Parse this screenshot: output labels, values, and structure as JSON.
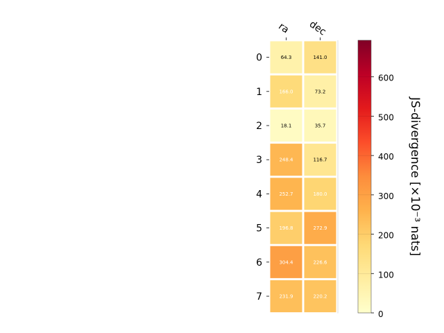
{
  "chart_data": {
    "type": "heatmap",
    "columns": [
      "ra",
      "dec"
    ],
    "rows": [
      "0",
      "1",
      "2",
      "3",
      "4",
      "5",
      "6",
      "7"
    ],
    "values": [
      [
        64.3,
        141.0
      ],
      [
        166.0,
        73.2
      ],
      [
        18.1,
        35.7
      ],
      [
        248.4,
        116.7
      ],
      [
        252.7,
        180.0
      ],
      [
        196.8,
        272.9
      ],
      [
        304.4,
        226.6
      ],
      [
        231.9,
        220.2
      ]
    ],
    "value_labels": [
      [
        "64.3",
        "141.0"
      ],
      [
        "166.0",
        "73.2"
      ],
      [
        "18.1",
        "35.7"
      ],
      [
        "248.4",
        "116.7"
      ],
      [
        "252.7",
        "180.0"
      ],
      [
        "196.8",
        "272.9"
      ],
      [
        "304.4",
        "226.6"
      ],
      [
        "231.9",
        "220.2"
      ]
    ],
    "colorbar": {
      "label": "JS-divergence [×10⁻³ nats]",
      "vmin": 0,
      "vmax": 693,
      "ticks": [
        0,
        100,
        200,
        300,
        400,
        500,
        600
      ],
      "colormap": "YlOrRd"
    },
    "text_color_threshold": 150
  }
}
